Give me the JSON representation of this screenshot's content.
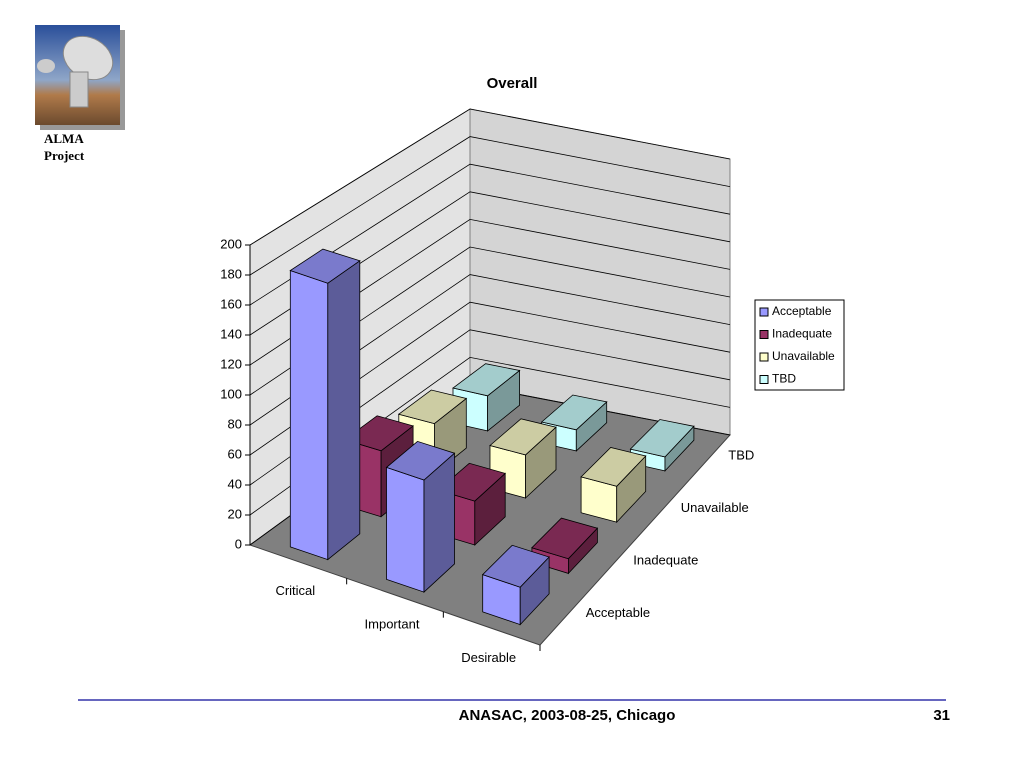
{
  "logo_caption": [
    "ALMA",
    "Project"
  ],
  "footer": {
    "text": "ANASAC, 2003-08-25, Chicago",
    "page": "31"
  },
  "chart_data": {
    "type": "bar3d",
    "title": "Overall",
    "categories": [
      "Critical",
      "Important",
      "Desirable"
    ],
    "series": [
      {
        "name": "Acceptable",
        "color": "#9999ff",
        "values": [
          185,
          75,
          25
        ]
      },
      {
        "name": "Inadequate",
        "color": "#993366",
        "values": [
          45,
          30,
          10
        ]
      },
      {
        "name": "Unavailable",
        "color": "#ffffcc",
        "values": [
          35,
          30,
          25
        ]
      },
      {
        "name": "TBD",
        "color": "#ccffff",
        "values": [
          25,
          15,
          10
        ]
      }
    ],
    "ylim": [
      0,
      200
    ],
    "yticks": [
      0,
      20,
      40,
      60,
      80,
      100,
      120,
      140,
      160,
      180,
      200
    ],
    "grid": true,
    "legend": "right"
  }
}
